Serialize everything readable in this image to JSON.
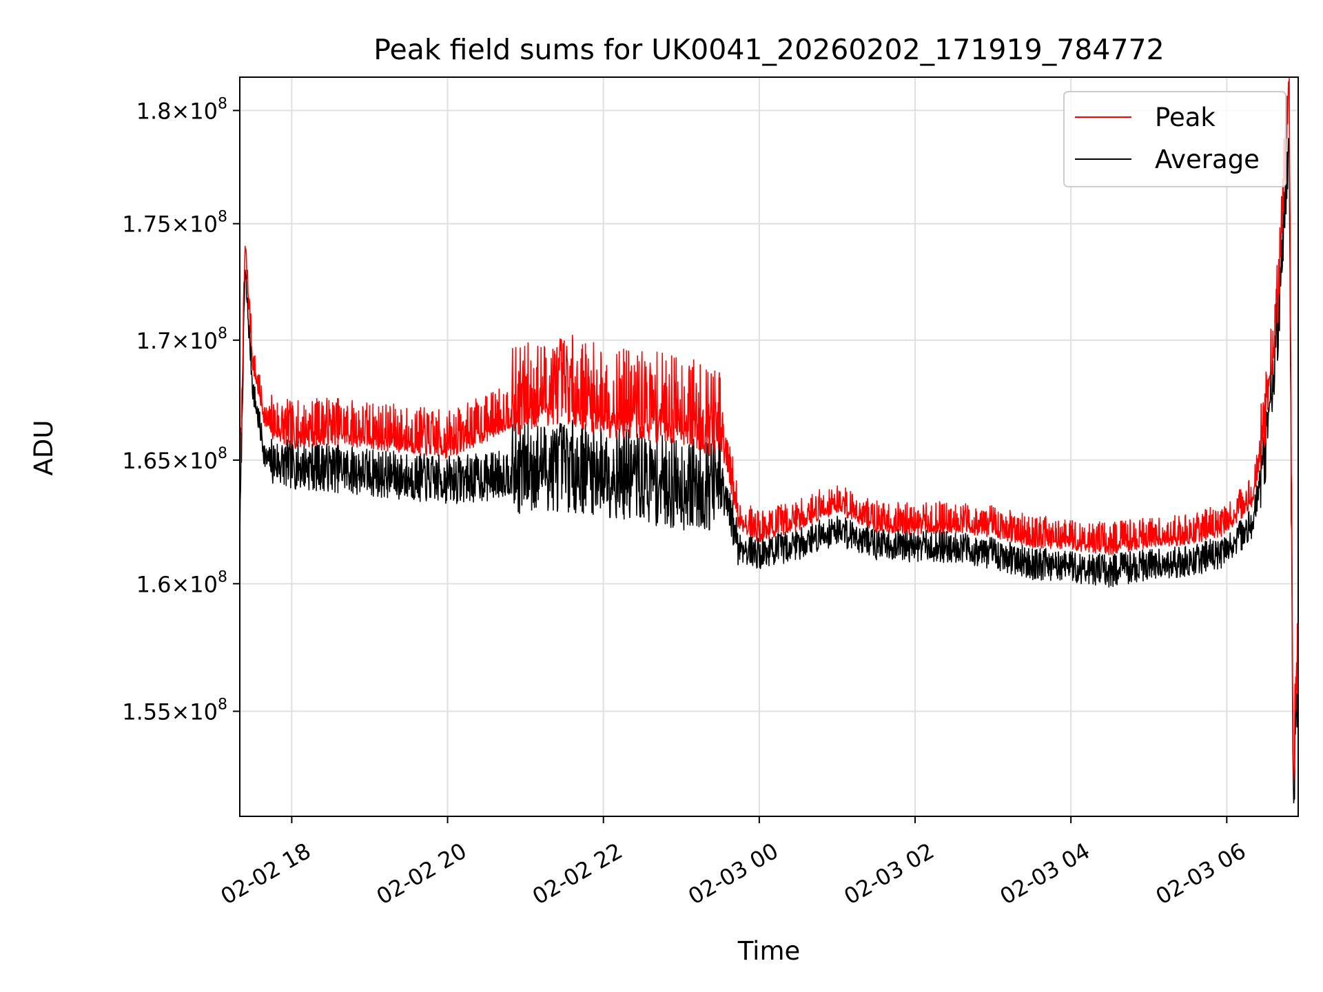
{
  "chart_data": {
    "type": "line",
    "title": "Peak field sums for UK0041_20260202_171919_784772",
    "xlabel": "Time",
    "ylabel": "ADU",
    "x_type": "datetime",
    "xlim": [
      "2026-02-02 17:20",
      "2026-02-03 06:55"
    ],
    "ylim": [
      151000000,
      181500000
    ],
    "y_scale": "log",
    "grid": true,
    "legend_position": "top-right",
    "x_ticks": [
      {
        "value": "2026-02-02 18:00",
        "label": "02-02 18"
      },
      {
        "value": "2026-02-02 20:00",
        "label": "02-02 20"
      },
      {
        "value": "2026-02-02 22:00",
        "label": "02-02 22"
      },
      {
        "value": "2026-02-03 00:00",
        "label": "02-03 00"
      },
      {
        "value": "2026-02-03 02:00",
        "label": "02-03 02"
      },
      {
        "value": "2026-02-03 04:00",
        "label": "02-03 04"
      },
      {
        "value": "2026-02-03 06:00",
        "label": "02-03 06"
      }
    ],
    "y_ticks": [
      {
        "value": 155000000,
        "mantissa": "1.55",
        "exponent": "8"
      },
      {
        "value": 160000000,
        "mantissa": "1.6",
        "exponent": "8"
      },
      {
        "value": 165000000,
        "mantissa": "1.65",
        "exponent": "8"
      },
      {
        "value": 170000000,
        "mantissa": "1.7",
        "exponent": "8"
      },
      {
        "value": 175000000,
        "mantissa": "1.75",
        "exponent": "8"
      },
      {
        "value": 180000000,
        "mantissa": "1.8",
        "exponent": "8"
      }
    ],
    "series": [
      {
        "name": "Peak",
        "color": "#ff0000",
        "points": [
          [
            "2026-02-02 17:20",
            163000000
          ],
          [
            "2026-02-02 17:24",
            174000000
          ],
          [
            "2026-02-02 17:30",
            169000000
          ],
          [
            "2026-02-02 17:40",
            166500000
          ],
          [
            "2026-02-02 18:00",
            166000000
          ],
          [
            "2026-02-02 18:30",
            166200000
          ],
          [
            "2026-02-02 19:00",
            166000000
          ],
          [
            "2026-02-02 19:30",
            165800000
          ],
          [
            "2026-02-02 20:00",
            165600000
          ],
          [
            "2026-02-02 20:30",
            166300000
          ],
          [
            "2026-02-02 21:00",
            167200000
          ],
          [
            "2026-02-02 21:30",
            167600000
          ],
          [
            "2026-02-02 22:00",
            167000000
          ],
          [
            "2026-02-02 22:30",
            166800000
          ],
          [
            "2026-02-02 23:00",
            166700000
          ],
          [
            "2026-02-02 23:30",
            166000000
          ],
          [
            "2026-02-02 23:45",
            162500000
          ],
          [
            "2026-02-03 00:00",
            162000000
          ],
          [
            "2026-02-03 00:30",
            162500000
          ],
          [
            "2026-02-03 01:00",
            163200000
          ],
          [
            "2026-02-03 01:30",
            162400000
          ],
          [
            "2026-02-03 02:00",
            162300000
          ],
          [
            "2026-02-03 02:30",
            162400000
          ],
          [
            "2026-02-03 03:00",
            162200000
          ],
          [
            "2026-02-03 03:30",
            161800000
          ],
          [
            "2026-02-03 04:00",
            161700000
          ],
          [
            "2026-02-03 04:30",
            161500000
          ],
          [
            "2026-02-03 05:00",
            161800000
          ],
          [
            "2026-02-03 05:30",
            161900000
          ],
          [
            "2026-02-03 06:00",
            162300000
          ],
          [
            "2026-02-03 06:20",
            163500000
          ],
          [
            "2026-02-03 06:30",
            166500000
          ],
          [
            "2026-02-03 06:40",
            172000000
          ],
          [
            "2026-02-03 06:48",
            181500000
          ],
          [
            "2026-02-03 06:51",
            152000000
          ],
          [
            "2026-02-03 06:55",
            157500000
          ]
        ]
      },
      {
        "name": "Average",
        "color": "#000000",
        "points": [
          [
            "2026-02-02 17:20",
            162000000
          ],
          [
            "2026-02-02 17:24",
            173000000
          ],
          [
            "2026-02-02 17:30",
            168000000
          ],
          [
            "2026-02-02 17:40",
            165000000
          ],
          [
            "2026-02-02 18:00",
            164800000
          ],
          [
            "2026-02-02 18:30",
            164700000
          ],
          [
            "2026-02-02 19:00",
            164500000
          ],
          [
            "2026-02-02 19:30",
            164300000
          ],
          [
            "2026-02-02 20:00",
            164200000
          ],
          [
            "2026-02-02 20:30",
            164300000
          ],
          [
            "2026-02-02 21:00",
            164700000
          ],
          [
            "2026-02-02 21:30",
            164800000
          ],
          [
            "2026-02-02 22:00",
            164600000
          ],
          [
            "2026-02-02 22:30",
            164300000
          ],
          [
            "2026-02-02 23:00",
            164000000
          ],
          [
            "2026-02-02 23:30",
            164000000
          ],
          [
            "2026-02-02 23:45",
            161500000
          ],
          [
            "2026-02-03 00:00",
            161200000
          ],
          [
            "2026-02-03 00:30",
            161600000
          ],
          [
            "2026-02-03 01:00",
            162200000
          ],
          [
            "2026-02-03 01:30",
            161600000
          ],
          [
            "2026-02-03 02:00",
            161500000
          ],
          [
            "2026-02-03 02:30",
            161500000
          ],
          [
            "2026-02-03 03:00",
            161200000
          ],
          [
            "2026-02-03 03:30",
            160800000
          ],
          [
            "2026-02-03 04:00",
            160700000
          ],
          [
            "2026-02-03 04:30",
            160500000
          ],
          [
            "2026-02-03 05:00",
            160800000
          ],
          [
            "2026-02-03 05:30",
            160900000
          ],
          [
            "2026-02-03 06:00",
            161300000
          ],
          [
            "2026-02-03 06:20",
            162500000
          ],
          [
            "2026-02-03 06:30",
            165500000
          ],
          [
            "2026-02-03 06:40",
            171000000
          ],
          [
            "2026-02-03 06:48",
            179000000
          ],
          [
            "2026-02-03 06:51",
            151500000
          ],
          [
            "2026-02-03 06:55",
            156500000
          ]
        ]
      }
    ]
  }
}
